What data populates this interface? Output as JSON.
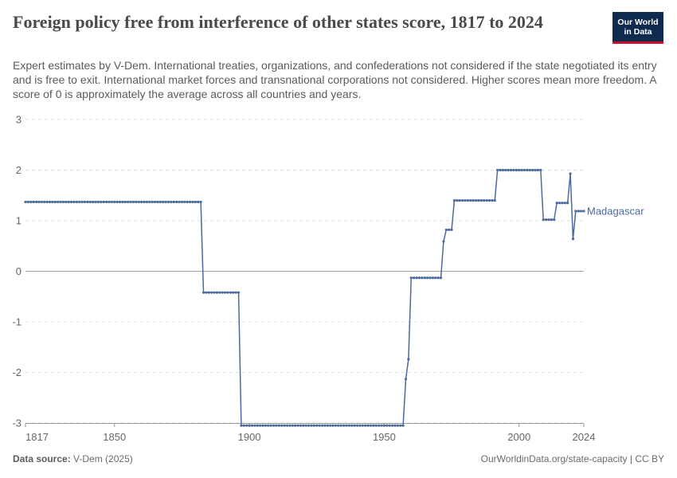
{
  "header": {
    "title": "Foreign policy free from interference of other states score, 1817 to 2024",
    "subtitle": "Expert estimates by V-Dem. International treaties, organizations, and confederations not considered if the state negotiated its entry and is free to exit. International market forces and transnational corporations not considered. Higher scores mean more freedom. A score of 0 is approximately the average across all countries and years.",
    "logo_line1": "Our World",
    "logo_line2": "in Data"
  },
  "footer": {
    "source_label": "Data source:",
    "source_value": "V-Dem (2025)",
    "right": "OurWorldinData.org/state-capacity | CC BY"
  },
  "colors": {
    "series": "#4c6a9c",
    "grid": "#dddddd",
    "zero_line": "#a0a0a0",
    "axis_text": "#666666",
    "logo_bg": "#0e2a4f",
    "logo_accent": "#c8102e"
  },
  "chart_data": {
    "type": "line",
    "xlim": [
      1817,
      2024
    ],
    "ylim": [
      -3,
      3
    ],
    "x_ticks": [
      1817,
      1850,
      1900,
      1950,
      2000,
      2024
    ],
    "y_ticks": [
      -3,
      -2,
      -1,
      0,
      1,
      2,
      3
    ],
    "grid": "horizontal dashed",
    "legend": "end-of-line label",
    "series": [
      {
        "name": "Madagascar",
        "color": "#4c6a9c",
        "segments": [
          {
            "from": 1817,
            "to": 1882,
            "value": 1.37
          },
          {
            "from": 1883,
            "to": 1896,
            "value": -0.42
          },
          {
            "from": 1897,
            "to": 1957,
            "value": -3.05
          },
          {
            "from": 1958,
            "to": 1958,
            "value": -2.13
          },
          {
            "from": 1959,
            "to": 1959,
            "value": -1.74
          },
          {
            "from": 1960,
            "to": 1971,
            "value": -0.13
          },
          {
            "from": 1972,
            "to": 1972,
            "value": 0.59
          },
          {
            "from": 1973,
            "to": 1975,
            "value": 0.82
          },
          {
            "from": 1976,
            "to": 1991,
            "value": 1.4
          },
          {
            "from": 1992,
            "to": 2008,
            "value": 2.0
          },
          {
            "from": 2009,
            "to": 2013,
            "value": 1.02
          },
          {
            "from": 2014,
            "to": 2018,
            "value": 1.35
          },
          {
            "from": 2019,
            "to": 2019,
            "value": 1.93
          },
          {
            "from": 2020,
            "to": 2020,
            "value": 0.64
          },
          {
            "from": 2021,
            "to": 2024,
            "value": 1.19
          }
        ]
      }
    ]
  }
}
